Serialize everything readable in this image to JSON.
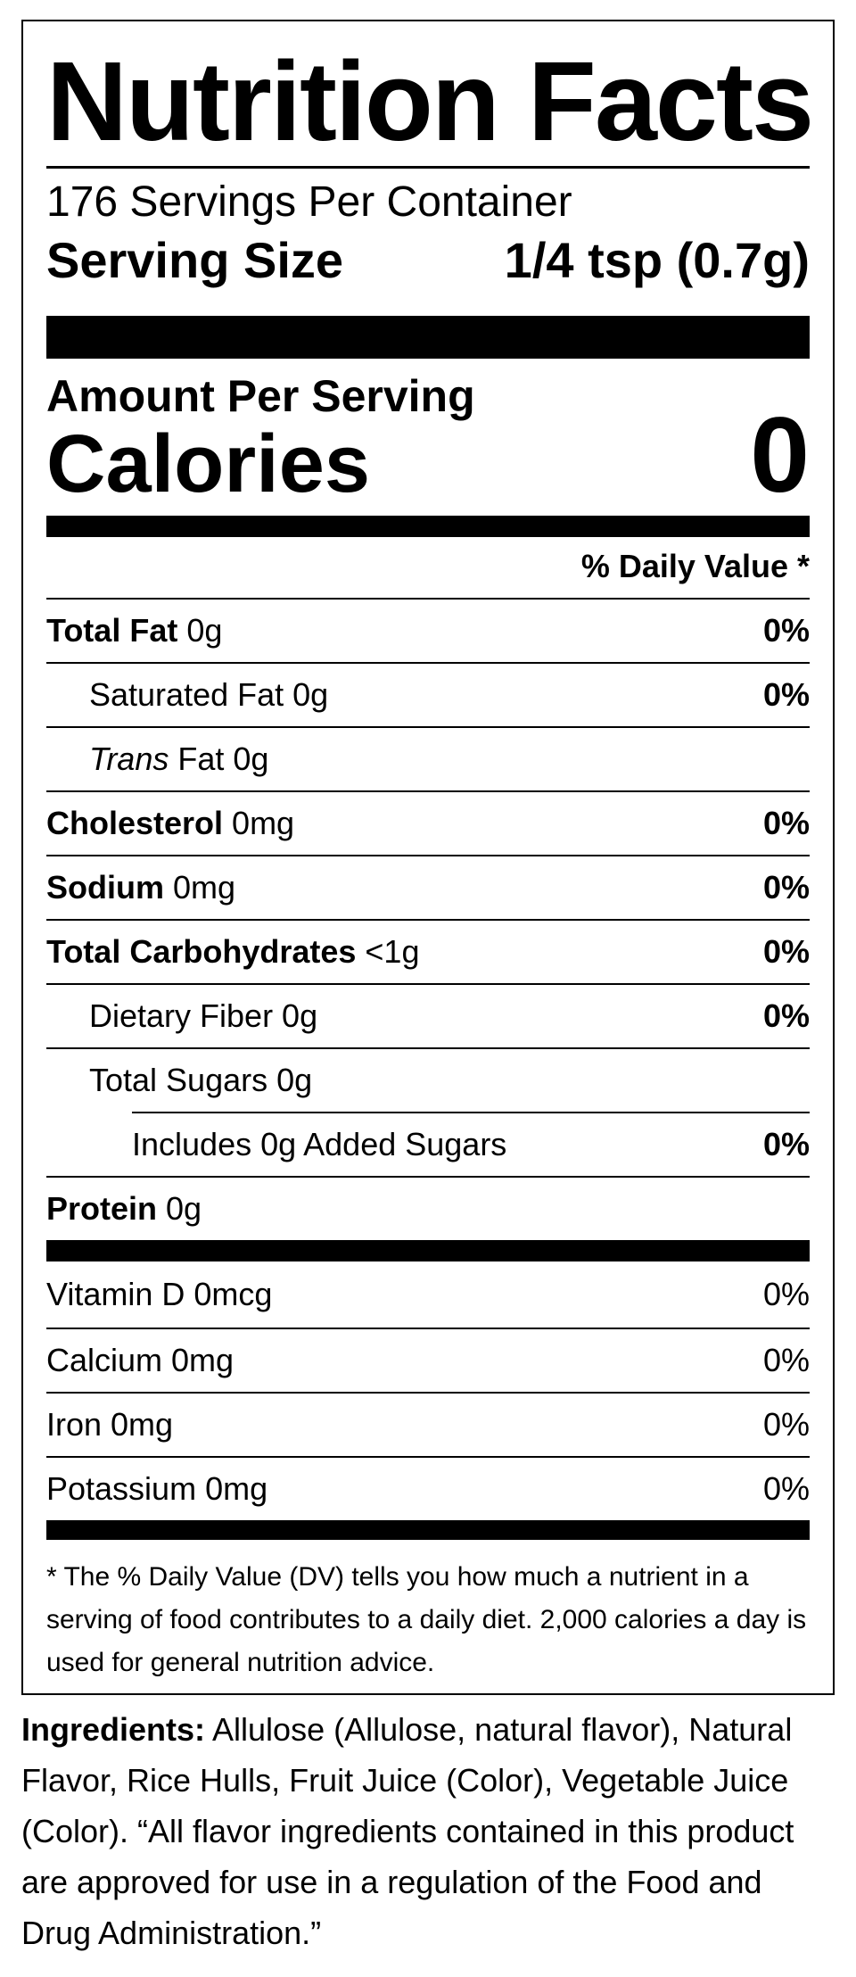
{
  "label": {
    "title": "Nutrition Facts",
    "servings_per_container": "176 Servings Per Container",
    "serving_size_label": "Serving Size",
    "serving_size_value": "1/4 tsp (0.7g)",
    "amount_per_serving": "Amount Per Serving",
    "calories_label": "Calories",
    "calories_value": "0",
    "daily_value_header": "% Daily Value *",
    "nutrients": [
      {
        "name": "Total Fat",
        "amount": " 0g",
        "dv": "0%"
      },
      {
        "name": "Saturated Fat 0g",
        "amount": "",
        "dv": "0%"
      },
      {
        "name_italic": "Trans",
        "name": " Fat 0g",
        "amount": "",
        "dv": ""
      },
      {
        "name": "Cholesterol",
        "amount": " 0mg",
        "dv": "0%"
      },
      {
        "name": "Sodium",
        "amount": " 0mg",
        "dv": "0%"
      },
      {
        "name": "Total Carbohydrates",
        "amount": " <1g",
        "dv": "0%"
      },
      {
        "name": "Dietary Fiber 0g",
        "amount": "",
        "dv": "0%"
      },
      {
        "name": "Total Sugars 0g",
        "amount": "",
        "dv": ""
      },
      {
        "name": "Includes 0g Added Sugars",
        "amount": "",
        "dv": "0%"
      },
      {
        "name": "Protein",
        "amount": " 0g",
        "dv": ""
      }
    ],
    "vitamins": [
      {
        "name": "Vitamin D 0mcg",
        "dv": "0%"
      },
      {
        "name": "Calcium 0mg",
        "dv": "0%"
      },
      {
        "name": "Iron 0mg",
        "dv": "0%"
      },
      {
        "name": "Potassium 0mg",
        "dv": "0%"
      }
    ],
    "footnote": "* The % Daily Value (DV) tells you how much a nutrient in a serving of food contributes to a daily diet. 2,000 calories a day is used for general nutrition advice."
  },
  "ingredients": {
    "label": "Ingredients:",
    "text": " Allulose (Allulose, natural flavor), Natural Flavor, Rice Hulls, Fruit Juice (Color), Vegetable Juice (Color). “All flavor ingredients contained in this product are approved for use in a regulation of the Food and Drug Administration.”"
  }
}
